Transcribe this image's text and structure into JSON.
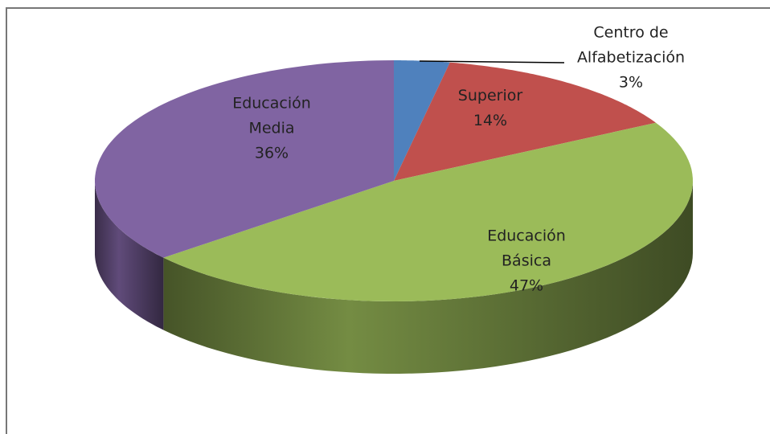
{
  "chart_data": {
    "type": "pie",
    "categories": [
      "Centro de Alfabetización",
      "Superior",
      "Educación Básica",
      "Educación Media"
    ],
    "values": [
      3,
      14,
      47,
      36
    ],
    "value_labels": [
      "3%",
      "14%",
      "47%",
      "36%"
    ],
    "colors": [
      "#4f81bd",
      "#c0504d",
      "#9bbb59",
      "#8064a2"
    ]
  }
}
